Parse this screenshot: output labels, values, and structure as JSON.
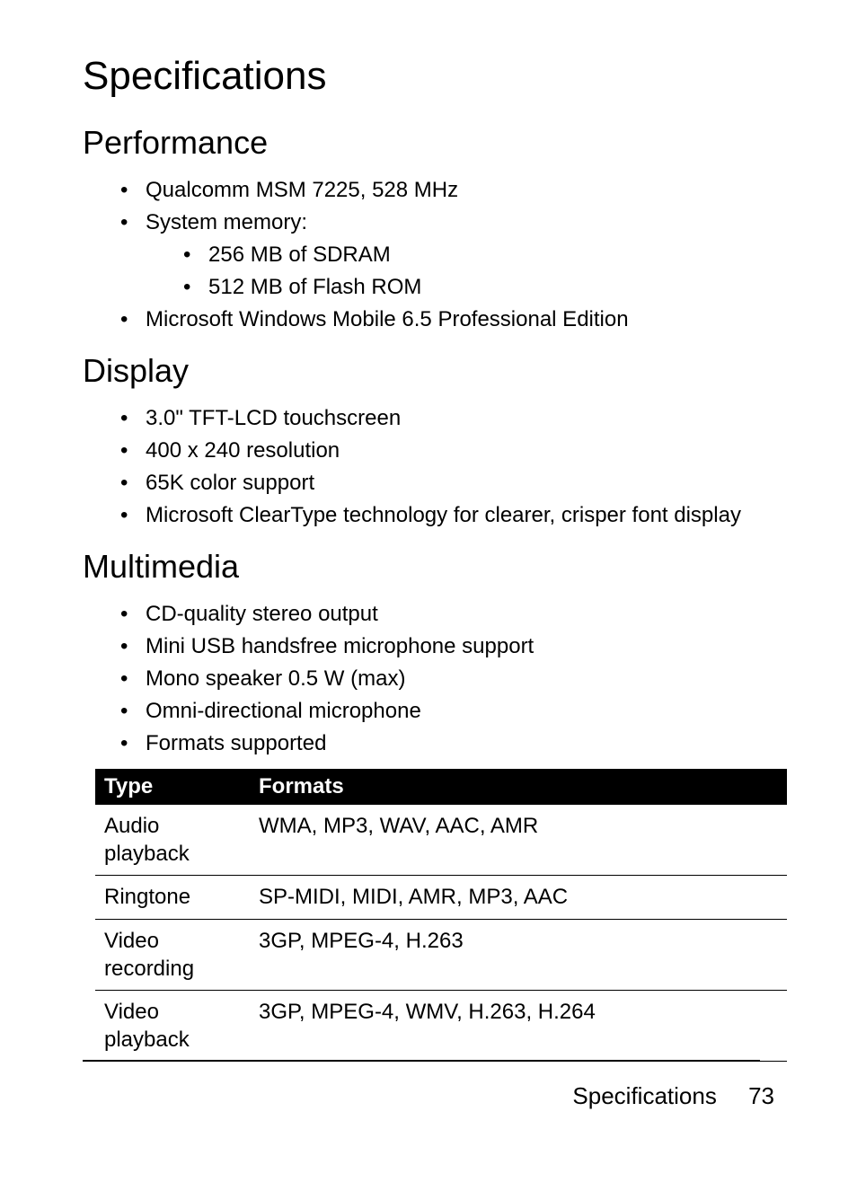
{
  "page": {
    "title": "Specifications",
    "footer_label": "Specifications",
    "page_number": "73"
  },
  "sections": {
    "performance": {
      "heading": "Performance",
      "items": [
        "Qualcomm MSM 7225, 528 MHz",
        "System memory:",
        "Microsoft Windows Mobile 6.5 Professional Edition"
      ],
      "memory_sub": [
        "256 MB of SDRAM",
        "512 MB of Flash ROM"
      ]
    },
    "display": {
      "heading": "Display",
      "items": [
        "3.0\" TFT-LCD touchscreen",
        "400 x 240 resolution",
        "65K color support",
        "Microsoft ClearType technology for clearer, crisper font display"
      ]
    },
    "multimedia": {
      "heading": "Multimedia",
      "items": [
        "CD-quality stereo output",
        "Mini USB handsfree microphone support",
        "Mono speaker 0.5 W (max)",
        "Omni-directional microphone",
        "Formats supported"
      ]
    }
  },
  "formats_table": {
    "columns": [
      "Type",
      "Formats"
    ],
    "rows": [
      [
        "Audio playback",
        "WMA, MP3, WAV, AAC, AMR"
      ],
      [
        "Ringtone",
        "SP-MIDI, MIDI, AMR, MP3, AAC"
      ],
      [
        "Video recording",
        "3GP, MPEG-4, H.263"
      ],
      [
        "Video playback",
        "3GP, MPEG-4, WMV, H.263, H.264"
      ]
    ],
    "header_bg": "#000000",
    "header_fg": "#ffffff",
    "row_border": "#000000",
    "col_type_width": 172
  },
  "colors": {
    "background": "#ffffff",
    "text": "#000000"
  },
  "typography": {
    "title_fontsize": 44,
    "heading_fontsize": 36,
    "body_fontsize": 24,
    "footer_fontsize": 26
  }
}
